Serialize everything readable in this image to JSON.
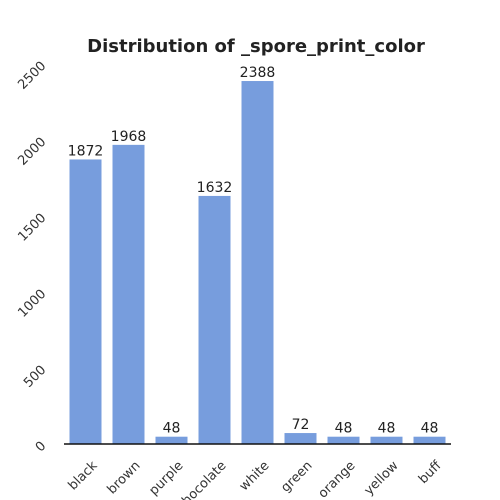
{
  "chart_data": {
    "type": "bar",
    "title": "Distribution of _spore_print_color",
    "xlabel": "",
    "ylabel": "",
    "categories": [
      "black",
      "brown",
      "purple",
      "chocolate",
      "white",
      "green",
      "orange",
      "yellow",
      "buff"
    ],
    "values": [
      1872,
      1968,
      48,
      1632,
      2388,
      72,
      48,
      48,
      48
    ],
    "data_labels": [
      "1872",
      "1968",
      "48",
      "1632",
      "2388",
      "72",
      "48",
      "48",
      "48"
    ],
    "ylim": [
      0,
      2500
    ],
    "yticks": [
      0,
      500,
      1000,
      1500,
      2000,
      2500
    ],
    "ytick_labels": [
      "0",
      "500",
      "1000",
      "1500",
      "2000",
      "2500"
    ],
    "grid": false,
    "legend": "none",
    "bar_color": "#779ddd",
    "axis_color": "#111111"
  }
}
